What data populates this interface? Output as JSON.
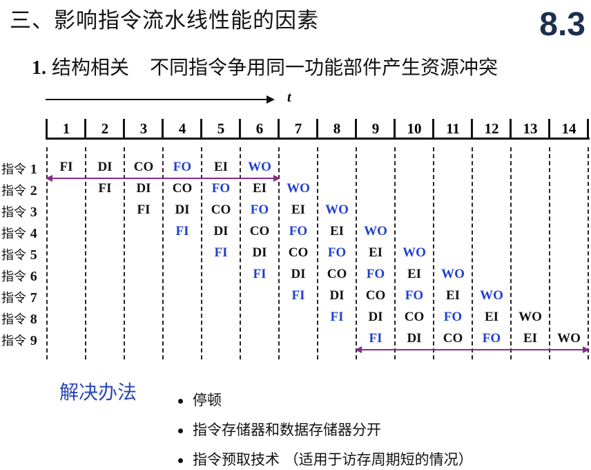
{
  "header": {
    "title": "三、影响指令流水线性能的因素",
    "section_number": "8.3"
  },
  "subtitle": {
    "number": "1.",
    "heading": "结构相关",
    "description": "不同指令争用同一功能部件产生资源冲突"
  },
  "diagram": {
    "time_label": "t",
    "cycles": [
      "1",
      "2",
      "3",
      "4",
      "5",
      "6",
      "7",
      "8",
      "9",
      "10",
      "11",
      "12",
      "13",
      "14"
    ],
    "colors": {
      "blue": "#1f3fd1",
      "black": "#111111",
      "conflict_arrow": "#8a2a8a"
    },
    "rows": [
      {
        "label": "指令",
        "num": "1",
        "start": 1,
        "stages": [
          {
            "t": "FI",
            "c": "black"
          },
          {
            "t": "DI",
            "c": "black"
          },
          {
            "t": "CO",
            "c": "black"
          },
          {
            "t": "FO",
            "c": "blue"
          },
          {
            "t": "EI",
            "c": "black"
          },
          {
            "t": "WO",
            "c": "blue"
          }
        ]
      },
      {
        "label": "指令",
        "num": "2",
        "start": 2,
        "stages": [
          {
            "t": "FI",
            "c": "black"
          },
          {
            "t": "DI",
            "c": "black"
          },
          {
            "t": "CO",
            "c": "black"
          },
          {
            "t": "FO",
            "c": "blue"
          },
          {
            "t": "EI",
            "c": "black"
          },
          {
            "t": "WO",
            "c": "blue"
          }
        ]
      },
      {
        "label": "指令",
        "num": "3",
        "start": 3,
        "stages": [
          {
            "t": "FI",
            "c": "black"
          },
          {
            "t": "DI",
            "c": "black"
          },
          {
            "t": "CO",
            "c": "black"
          },
          {
            "t": "FO",
            "c": "blue"
          },
          {
            "t": "EI",
            "c": "black"
          },
          {
            "t": "WO",
            "c": "blue"
          }
        ]
      },
      {
        "label": "指令",
        "num": "4",
        "start": 4,
        "stages": [
          {
            "t": "FI",
            "c": "blue"
          },
          {
            "t": "DI",
            "c": "black"
          },
          {
            "t": "CO",
            "c": "black"
          },
          {
            "t": "FO",
            "c": "blue"
          },
          {
            "t": "EI",
            "c": "black"
          },
          {
            "t": "WO",
            "c": "blue"
          }
        ]
      },
      {
        "label": "指令",
        "num": "5",
        "start": 5,
        "stages": [
          {
            "t": "FI",
            "c": "blue"
          },
          {
            "t": "DI",
            "c": "black"
          },
          {
            "t": "CO",
            "c": "black"
          },
          {
            "t": "FO",
            "c": "blue"
          },
          {
            "t": "EI",
            "c": "black"
          },
          {
            "t": "WO",
            "c": "blue"
          }
        ]
      },
      {
        "label": "指令",
        "num": "6",
        "start": 6,
        "stages": [
          {
            "t": "FI",
            "c": "blue"
          },
          {
            "t": "DI",
            "c": "black"
          },
          {
            "t": "CO",
            "c": "black"
          },
          {
            "t": "FO",
            "c": "blue"
          },
          {
            "t": "EI",
            "c": "black"
          },
          {
            "t": "WO",
            "c": "blue"
          }
        ]
      },
      {
        "label": "指令",
        "num": "7",
        "start": 7,
        "stages": [
          {
            "t": "FI",
            "c": "blue"
          },
          {
            "t": "DI",
            "c": "black"
          },
          {
            "t": "CO",
            "c": "black"
          },
          {
            "t": "FO",
            "c": "blue"
          },
          {
            "t": "EI",
            "c": "black"
          },
          {
            "t": "WO",
            "c": "blue"
          }
        ]
      },
      {
        "label": "指令",
        "num": "8",
        "start": 8,
        "stages": [
          {
            "t": "FI",
            "c": "blue"
          },
          {
            "t": "DI",
            "c": "black"
          },
          {
            "t": "CO",
            "c": "black"
          },
          {
            "t": "FO",
            "c": "blue"
          },
          {
            "t": "EI",
            "c": "black"
          },
          {
            "t": "WO",
            "c": "black"
          }
        ]
      },
      {
        "label": "指令",
        "num": "9",
        "start": 9,
        "stages": [
          {
            "t": "FI",
            "c": "blue"
          },
          {
            "t": "DI",
            "c": "black"
          },
          {
            "t": "CO",
            "c": "black"
          },
          {
            "t": "FO",
            "c": "blue"
          },
          {
            "t": "EI",
            "c": "black"
          },
          {
            "t": "WO",
            "c": "black"
          }
        ]
      }
    ],
    "conflict_spans": [
      {
        "row": 1,
        "from_cycle": 1,
        "to_cycle": 6
      },
      {
        "row": 9,
        "from_cycle": 9,
        "to_cycle": 14
      }
    ]
  },
  "solutions": {
    "title": "解决办法",
    "items": [
      "停顿",
      "指令存储器和数据存储器分开",
      "指令预取技术 （适用于访存周期短的情况）"
    ]
  }
}
